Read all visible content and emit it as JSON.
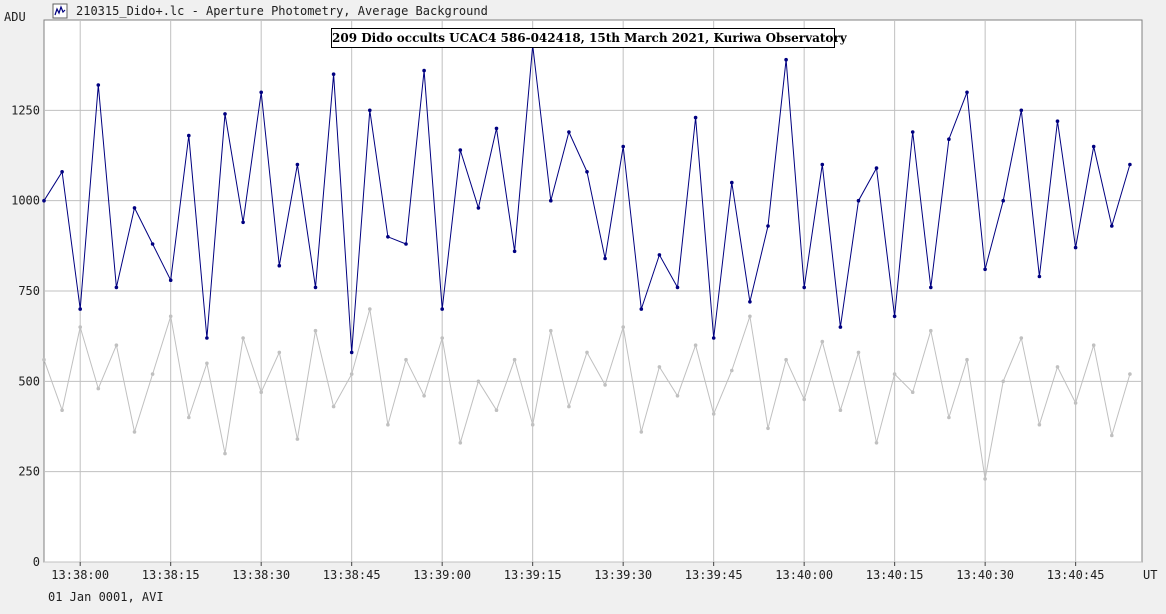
{
  "window": {
    "title": "210315_Dido+.lc - Aperture Photometry, Average Background",
    "footer": "01 Jan 0001, AVI"
  },
  "colors": {
    "background": "#f0f0f0",
    "plot_area": "#ffffff",
    "grid": "#c0c0c0",
    "target_series": "#000080",
    "background_series": "#c0c0c0"
  },
  "chart_data": {
    "type": "line",
    "title": "209 Dido occults UCAC4 586-042418, 15th March 2021, Kuriwa Observatory",
    "ylabel": "ADU",
    "xlabel": "UT",
    "ylim": [
      0,
      1500
    ],
    "xlim": [
      "13:37:54",
      "13:40:56"
    ],
    "yticks": [
      0,
      250,
      500,
      750,
      1000,
      1250
    ],
    "xticks": [
      "13:38:00",
      "13:38:15",
      "13:38:30",
      "13:38:45",
      "13:39:00",
      "13:39:15",
      "13:39:30",
      "13:39:45",
      "13:40:00",
      "13:40:15",
      "13:40:30",
      "13:40:45"
    ],
    "grid": true,
    "legend": "none",
    "series": [
      {
        "role": "target",
        "color": "#000080",
        "x": [
          "13:37:54",
          "13:37:57",
          "13:38:00",
          "13:38:03",
          "13:38:06",
          "13:38:09",
          "13:38:12",
          "13:38:15",
          "13:38:18",
          "13:38:21",
          "13:38:24",
          "13:38:27",
          "13:38:30",
          "13:38:33",
          "13:38:36",
          "13:38:39",
          "13:38:42",
          "13:38:45",
          "13:38:48",
          "13:38:51",
          "13:38:54",
          "13:38:57",
          "13:39:00",
          "13:39:03",
          "13:39:06",
          "13:39:09",
          "13:39:12",
          "13:39:15",
          "13:39:18",
          "13:39:21",
          "13:39:24",
          "13:39:27",
          "13:39:30",
          "13:39:33",
          "13:39:36",
          "13:39:39",
          "13:39:42",
          "13:39:45",
          "13:39:48",
          "13:39:51",
          "13:39:54",
          "13:39:57",
          "13:40:00",
          "13:40:03",
          "13:40:06",
          "13:40:09",
          "13:40:12",
          "13:40:15",
          "13:40:18",
          "13:40:21",
          "13:40:24",
          "13:40:27",
          "13:40:30",
          "13:40:33",
          "13:40:36",
          "13:40:39",
          "13:40:42",
          "13:40:45",
          "13:40:48",
          "13:40:51",
          "13:40:54"
        ],
        "y": [
          1000,
          1080,
          700,
          1320,
          760,
          980,
          880,
          780,
          1180,
          620,
          1240,
          940,
          1300,
          820,
          1100,
          760,
          1350,
          580,
          1250,
          900,
          880,
          1360,
          700,
          1140,
          980,
          1200,
          860,
          1430,
          1000,
          1190,
          1080,
          840,
          1150,
          700,
          850,
          760,
          1230,
          620,
          1050,
          720,
          930,
          1390,
          760,
          1100,
          650,
          1000,
          1090,
          680,
          1190,
          760,
          1170,
          1300,
          810,
          1000,
          1250,
          790,
          1220,
          870,
          1150,
          930,
          1100
        ]
      },
      {
        "role": "background",
        "color": "#c0c0c0",
        "x": [
          "13:37:54",
          "13:37:57",
          "13:38:00",
          "13:38:03",
          "13:38:06",
          "13:38:09",
          "13:38:12",
          "13:38:15",
          "13:38:18",
          "13:38:21",
          "13:38:24",
          "13:38:27",
          "13:38:30",
          "13:38:33",
          "13:38:36",
          "13:38:39",
          "13:38:42",
          "13:38:45",
          "13:38:48",
          "13:38:51",
          "13:38:54",
          "13:38:57",
          "13:39:00",
          "13:39:03",
          "13:39:06",
          "13:39:09",
          "13:39:12",
          "13:39:15",
          "13:39:18",
          "13:39:21",
          "13:39:24",
          "13:39:27",
          "13:39:30",
          "13:39:33",
          "13:39:36",
          "13:39:39",
          "13:39:42",
          "13:39:45",
          "13:39:48",
          "13:39:51",
          "13:39:54",
          "13:39:57",
          "13:40:00",
          "13:40:03",
          "13:40:06",
          "13:40:09",
          "13:40:12",
          "13:40:15",
          "13:40:18",
          "13:40:21",
          "13:40:24",
          "13:40:27",
          "13:40:30",
          "13:40:33",
          "13:40:36",
          "13:40:39",
          "13:40:42",
          "13:40:45",
          "13:40:48",
          "13:40:51",
          "13:40:54"
        ],
        "y": [
          560,
          420,
          650,
          480,
          600,
          360,
          520,
          680,
          400,
          550,
          300,
          620,
          470,
          580,
          340,
          640,
          430,
          520,
          700,
          380,
          560,
          460,
          620,
          330,
          500,
          420,
          560,
          380,
          640,
          430,
          580,
          490,
          650,
          360,
          540,
          460,
          600,
          410,
          530,
          680,
          370,
          560,
          450,
          610,
          420,
          580,
          330,
          520,
          470,
          640,
          400,
          560,
          230,
          500,
          620,
          380,
          540,
          440,
          600,
          350,
          520
        ]
      }
    ]
  }
}
